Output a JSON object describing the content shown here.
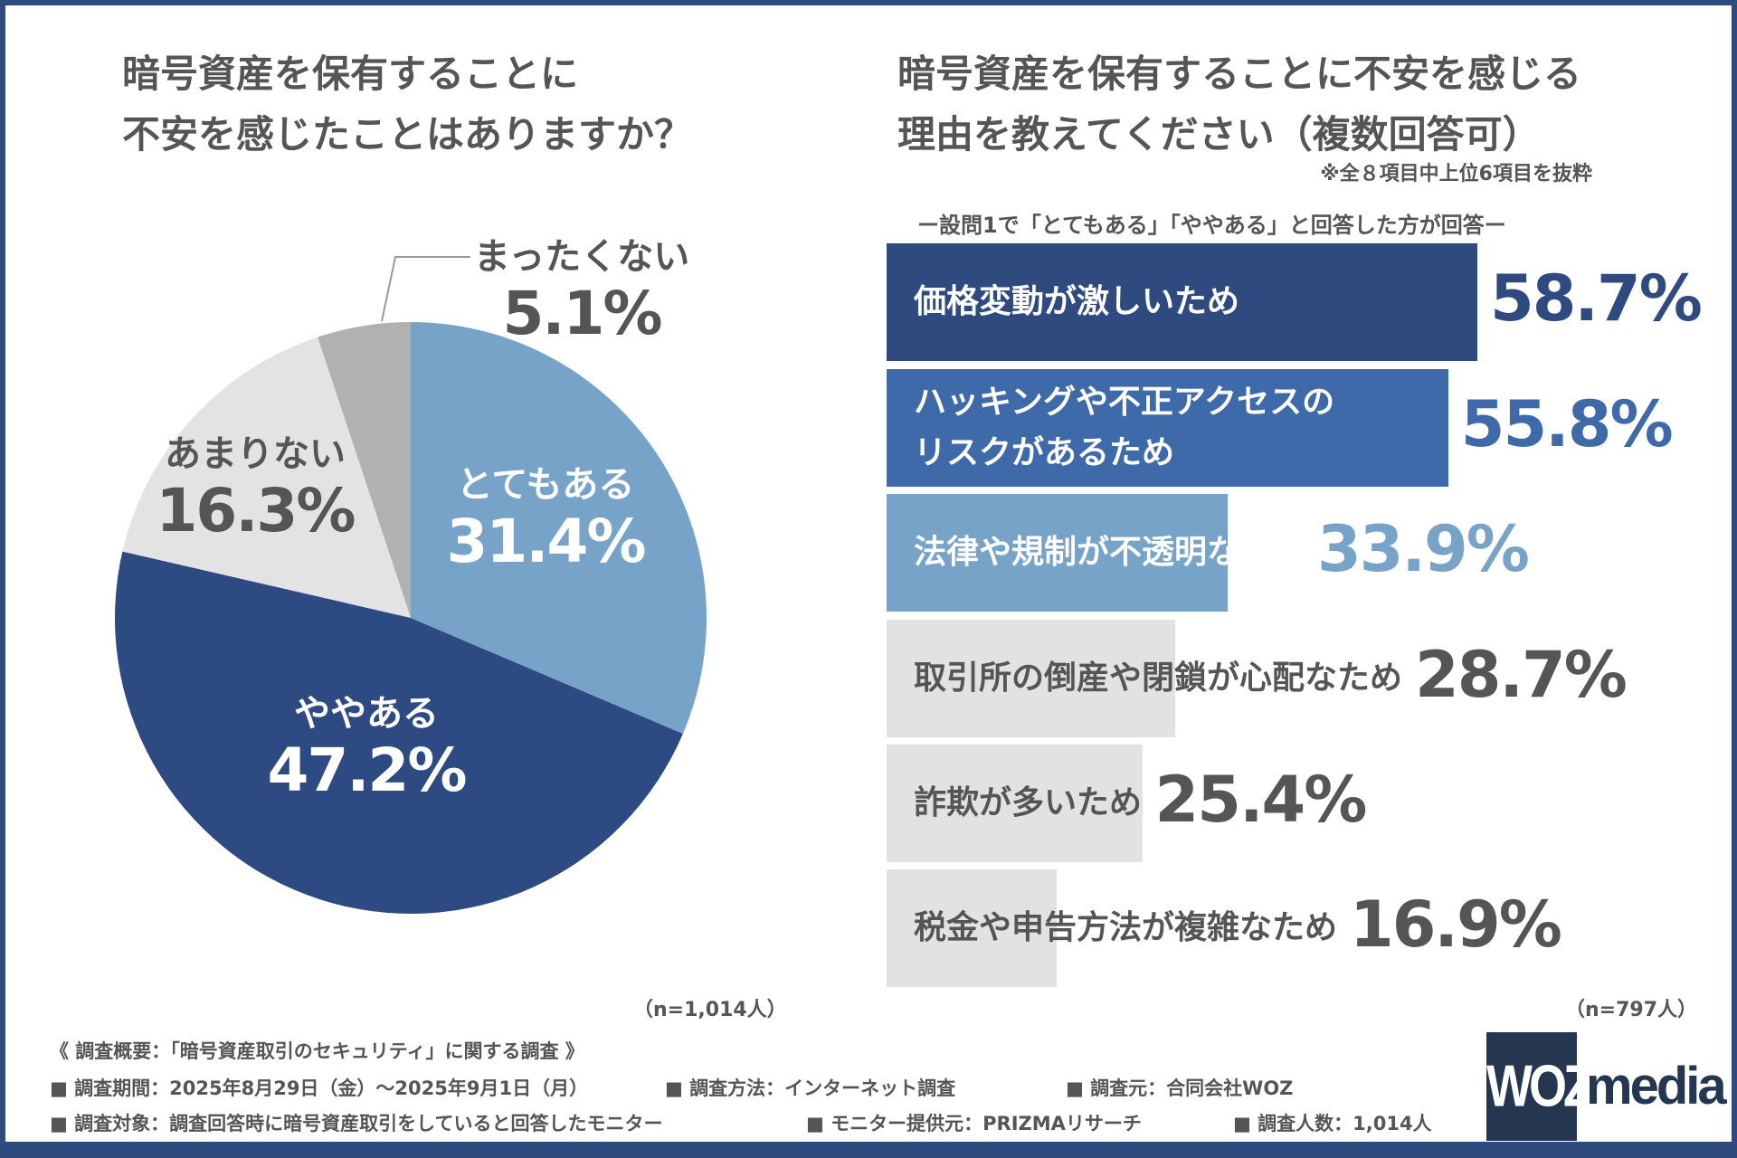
{
  "colors": {
    "navy": "#2e4a7f",
    "mid_blue": "#3e6aa9",
    "light_blue": "#78a3c8",
    "light_grey": "#e2e2e2",
    "grey": "#b1b1b1",
    "text": "#555555"
  },
  "left_chart": {
    "title_lines": [
      "暗号資産を保有することに",
      "不安を感じたことはありますか？"
    ],
    "sample": "（n=1,014人）"
  },
  "right_chart": {
    "title_lines": [
      "暗号資産を保有することに不安を感じる",
      "理由を教えてください（複数回答可）"
    ],
    "note": "※全８項目中上位6項目を抜粋",
    "subtitle": "ー設問1で「とてもある」「ややある」と回答した方が回答ー",
    "sample": "（n=797人）"
  },
  "chart_data": [
    {
      "type": "pie",
      "title": "暗号資産を保有することに不安を感じたことはありますか？",
      "start": "top",
      "direction": "clockwise",
      "slices": [
        {
          "label": "とてもある",
          "value": 31.4,
          "display": "31.4%",
          "color": "#78a3c8"
        },
        {
          "label": "ややある",
          "value": 47.2,
          "display": "47.2%",
          "color": "#2e4a82"
        },
        {
          "label": "あまりない",
          "value": 16.3,
          "display": "16.3%",
          "color": "#e3e3e3"
        },
        {
          "label": "まったくない",
          "value": 5.1,
          "display": "5.1%",
          "color": "#b1b1b1"
        }
      ]
    },
    {
      "type": "bar",
      "orientation": "horizontal",
      "title": "暗号資産を保有することに不安を感じる理由を教えてください（複数回答可）",
      "xlim": [
        0,
        100
      ],
      "grid": false,
      "bars": [
        {
          "label_lines": [
            "価格変動が激しいため"
          ],
          "value": 58.7,
          "display": "58.7%",
          "color": "#2e4a7f",
          "text_color": "#ffffff",
          "value_color": "#2e4a7f"
        },
        {
          "label_lines": [
            "ハッキングや不正アクセスの",
            "リスクがあるため"
          ],
          "value": 55.8,
          "display": "55.8%",
          "color": "#3e6aa9",
          "text_color": "#ffffff",
          "value_color": "#3e6aa9"
        },
        {
          "label_lines": [
            "法律や規制が不透明なため"
          ],
          "value": 33.9,
          "display": "33.9%",
          "color": "#78a3c8",
          "text_color": "#ffffff",
          "value_color": "#78a3c8"
        },
        {
          "label_lines": [
            "取引所の倒産や閉鎖が心配なため"
          ],
          "value": 28.7,
          "display": "28.7%",
          "color": "#e2e2e2",
          "text_color": "#555555",
          "value_color": "#555555"
        },
        {
          "label_lines": [
            "詐欺が多いため"
          ],
          "value": 25.4,
          "display": "25.4%",
          "color": "#e2e2e2",
          "text_color": "#555555",
          "value_color": "#555555"
        },
        {
          "label_lines": [
            "税金や申告方法が複雑なため"
          ],
          "value": 16.9,
          "display": "16.9%",
          "color": "#e2e2e2",
          "text_color": "#555555",
          "value_color": "#555555"
        }
      ]
    }
  ],
  "footer": {
    "heading": "《 調査概要：「暗号資産取引のセキュリティ」に関する調査 》",
    "items": [
      "■ 調査期間：2025年8月29日（金）～2025年9月1日（月）",
      "■ 調査方法：インターネット調査",
      "■ 調査元：合同会社WOZ",
      "■ 調査対象：調査回答時に暗号資産取引をしていると回答したモニター",
      "■ モニター提供元：PRIZMAリサーチ",
      "■ 調査人数：1,014人"
    ],
    "logo_left": "WOZ",
    "logo_right": "media"
  }
}
